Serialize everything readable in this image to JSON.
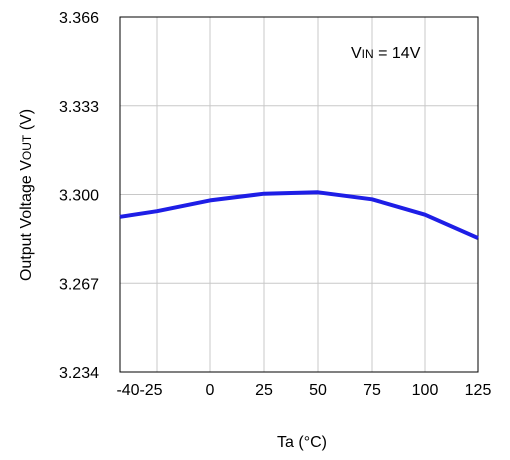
{
  "chart_data": {
    "type": "line",
    "title": "",
    "xlabel": "Ta (°C)",
    "ylabel_parts": [
      "Output Voltage V",
      "OUT",
      " (V)"
    ],
    "annotation_parts": [
      "V",
      "IN",
      " = 14V"
    ],
    "x_ticks": [
      "-40",
      "-25",
      "0",
      "25",
      "50",
      "75",
      "100",
      "125"
    ],
    "x_tick_values": [
      -40,
      -25,
      0,
      25,
      50,
      75,
      100,
      125
    ],
    "y_ticks": [
      "3.234",
      "3.267",
      "3.300",
      "3.333",
      "3.366"
    ],
    "y_tick_values": [
      3.234,
      3.267,
      3.3,
      3.333,
      3.366
    ],
    "xlim": [
      -40,
      125
    ],
    "ylim": [
      3.234,
      3.366
    ],
    "grid": true,
    "series": [
      {
        "color": "#1e1ee6",
        "x": [
          -40,
          -25,
          0,
          25,
          50,
          75,
          100,
          125
        ],
        "y": [
          3.2917,
          3.2938,
          3.2978,
          3.3003,
          3.3008,
          3.2982,
          3.2925,
          3.2838
        ]
      }
    ]
  }
}
